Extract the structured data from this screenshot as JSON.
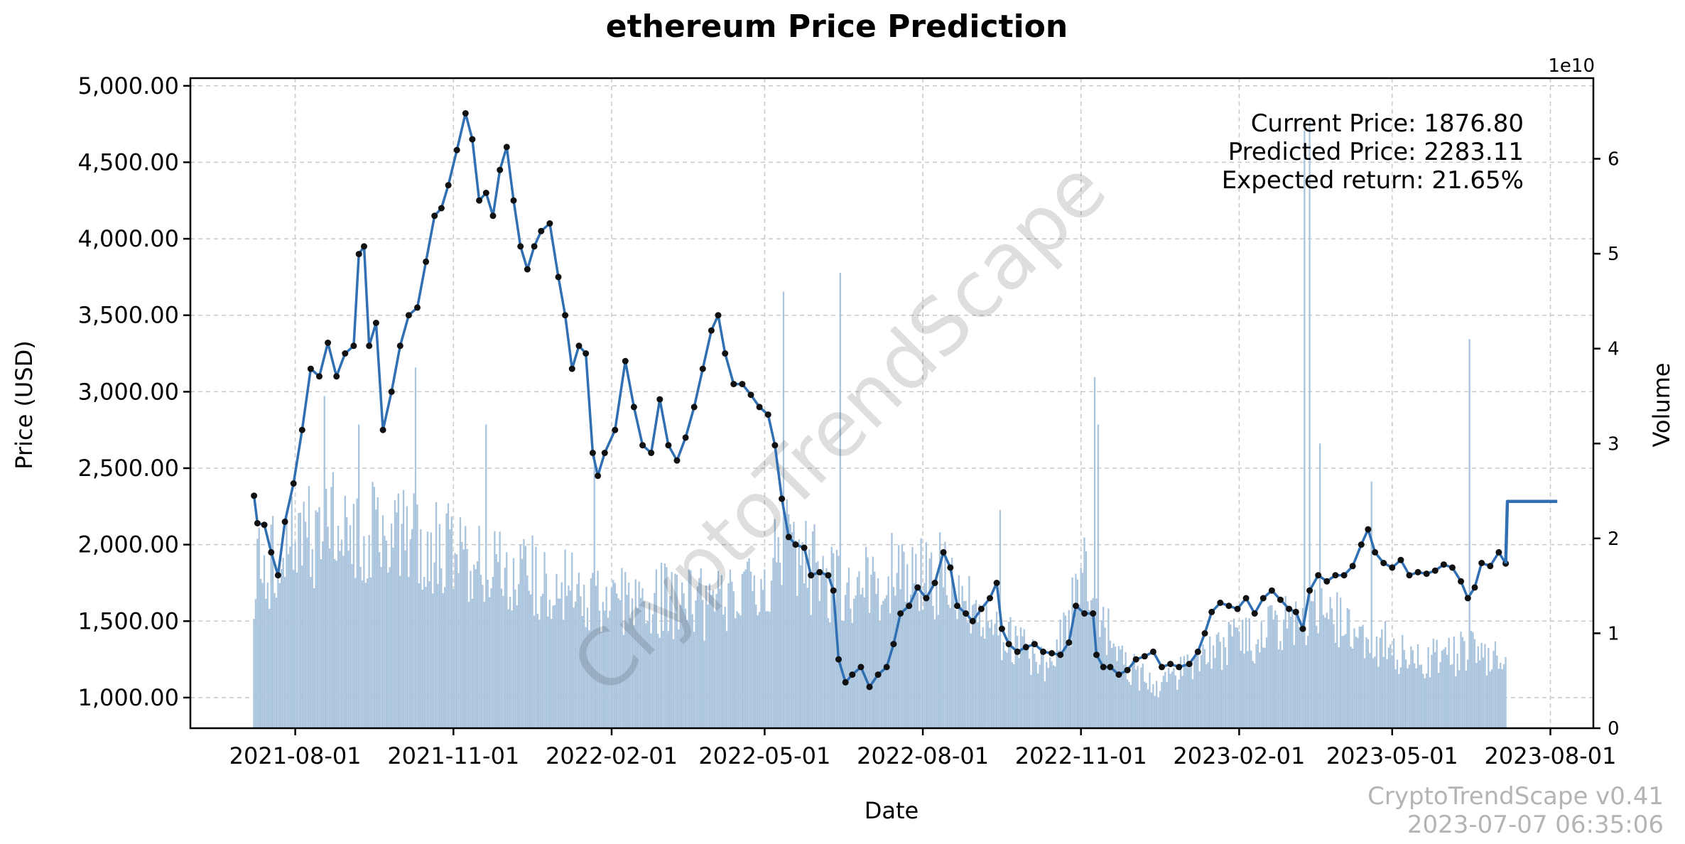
{
  "chart_data": {
    "type": "line",
    "title": "ethereum Price Prediction",
    "xlabel": "Date",
    "ylabel": "Price (USD)",
    "y2label": "Volume",
    "y2_offset_label": "1e10",
    "ylim": [
      800,
      5050
    ],
    "y2lim": [
      0,
      6.85
    ],
    "xlim": [
      "2021-06-01",
      "2023-08-26"
    ],
    "grid": true,
    "x_ticks": [
      "2021-08-01",
      "2021-11-01",
      "2022-02-01",
      "2022-05-01",
      "2022-08-01",
      "2022-11-01",
      "2023-02-01",
      "2023-05-01",
      "2023-08-01"
    ],
    "y_ticks": [
      "1,000.00",
      "1,500.00",
      "2,000.00",
      "2,500.00",
      "3,000.00",
      "3,500.00",
      "4,000.00",
      "4,500.00",
      "5,000.00"
    ],
    "y_tick_values": [
      1000,
      1500,
      2000,
      2500,
      3000,
      3500,
      4000,
      4500,
      5000
    ],
    "y2_ticks": [
      "0",
      "1",
      "2",
      "3",
      "4",
      "5",
      "6"
    ],
    "y2_tick_values": [
      0,
      1,
      2,
      3,
      4,
      5,
      6
    ],
    "series": [
      {
        "name": "Price",
        "color": "#2f6fb2",
        "marker_color": "#111111",
        "points": [
          [
            "2021-07-08",
            2320
          ],
          [
            "2021-07-10",
            2140
          ],
          [
            "2021-07-14",
            2130
          ],
          [
            "2021-07-18",
            1950
          ],
          [
            "2021-07-22",
            1800
          ],
          [
            "2021-07-26",
            2150
          ],
          [
            "2021-07-31",
            2400
          ],
          [
            "2021-08-05",
            2750
          ],
          [
            "2021-08-10",
            3150
          ],
          [
            "2021-08-15",
            3100
          ],
          [
            "2021-08-20",
            3320
          ],
          [
            "2021-08-25",
            3100
          ],
          [
            "2021-08-30",
            3250
          ],
          [
            "2021-09-04",
            3300
          ],
          [
            "2021-09-07",
            3900
          ],
          [
            "2021-09-10",
            3950
          ],
          [
            "2021-09-13",
            3300
          ],
          [
            "2021-09-17",
            3450
          ],
          [
            "2021-09-21",
            2750
          ],
          [
            "2021-09-26",
            3000
          ],
          [
            "2021-10-01",
            3300
          ],
          [
            "2021-10-06",
            3500
          ],
          [
            "2021-10-11",
            3550
          ],
          [
            "2021-10-16",
            3850
          ],
          [
            "2021-10-21",
            4150
          ],
          [
            "2021-10-25",
            4200
          ],
          [
            "2021-10-29",
            4350
          ],
          [
            "2021-11-03",
            4580
          ],
          [
            "2021-11-08",
            4820
          ],
          [
            "2021-11-12",
            4650
          ],
          [
            "2021-11-16",
            4250
          ],
          [
            "2021-11-20",
            4300
          ],
          [
            "2021-11-24",
            4150
          ],
          [
            "2021-11-28",
            4450
          ],
          [
            "2021-12-02",
            4600
          ],
          [
            "2021-12-06",
            4250
          ],
          [
            "2021-12-10",
            3950
          ],
          [
            "2021-12-14",
            3800
          ],
          [
            "2021-12-18",
            3950
          ],
          [
            "2021-12-22",
            4050
          ],
          [
            "2021-12-27",
            4100
          ],
          [
            "2022-01-01",
            3750
          ],
          [
            "2022-01-05",
            3500
          ],
          [
            "2022-01-09",
            3150
          ],
          [
            "2022-01-13",
            3300
          ],
          [
            "2022-01-17",
            3250
          ],
          [
            "2022-01-21",
            2600
          ],
          [
            "2022-01-24",
            2450
          ],
          [
            "2022-01-28",
            2600
          ],
          [
            "2022-02-03",
            2750
          ],
          [
            "2022-02-09",
            3200
          ],
          [
            "2022-02-14",
            2900
          ],
          [
            "2022-02-19",
            2650
          ],
          [
            "2022-02-24",
            2600
          ],
          [
            "2022-03-01",
            2950
          ],
          [
            "2022-03-06",
            2650
          ],
          [
            "2022-03-11",
            2550
          ],
          [
            "2022-03-16",
            2700
          ],
          [
            "2022-03-21",
            2900
          ],
          [
            "2022-03-26",
            3150
          ],
          [
            "2022-03-31",
            3400
          ],
          [
            "2022-04-04",
            3500
          ],
          [
            "2022-04-08",
            3250
          ],
          [
            "2022-04-13",
            3050
          ],
          [
            "2022-04-18",
            3050
          ],
          [
            "2022-04-23",
            2980
          ],
          [
            "2022-04-28",
            2900
          ],
          [
            "2022-05-03",
            2850
          ],
          [
            "2022-05-07",
            2650
          ],
          [
            "2022-05-11",
            2300
          ],
          [
            "2022-05-15",
            2050
          ],
          [
            "2022-05-19",
            2000
          ],
          [
            "2022-05-24",
            1980
          ],
          [
            "2022-05-28",
            1800
          ],
          [
            "2022-06-02",
            1820
          ],
          [
            "2022-06-07",
            1800
          ],
          [
            "2022-06-10",
            1700
          ],
          [
            "2022-06-13",
            1250
          ],
          [
            "2022-06-17",
            1100
          ],
          [
            "2022-06-21",
            1150
          ],
          [
            "2022-06-26",
            1200
          ],
          [
            "2022-07-01",
            1070
          ],
          [
            "2022-07-06",
            1150
          ],
          [
            "2022-07-11",
            1200
          ],
          [
            "2022-07-15",
            1350
          ],
          [
            "2022-07-19",
            1550
          ],
          [
            "2022-07-24",
            1600
          ],
          [
            "2022-07-29",
            1720
          ],
          [
            "2022-08-03",
            1650
          ],
          [
            "2022-08-08",
            1750
          ],
          [
            "2022-08-13",
            1950
          ],
          [
            "2022-08-17",
            1850
          ],
          [
            "2022-08-21",
            1600
          ],
          [
            "2022-08-26",
            1550
          ],
          [
            "2022-08-30",
            1500
          ],
          [
            "2022-09-04",
            1580
          ],
          [
            "2022-09-09",
            1650
          ],
          [
            "2022-09-13",
            1750
          ],
          [
            "2022-09-16",
            1450
          ],
          [
            "2022-09-20",
            1350
          ],
          [
            "2022-09-25",
            1300
          ],
          [
            "2022-09-30",
            1330
          ],
          [
            "2022-10-05",
            1350
          ],
          [
            "2022-10-10",
            1300
          ],
          [
            "2022-10-15",
            1290
          ],
          [
            "2022-10-20",
            1280
          ],
          [
            "2022-10-25",
            1360
          ],
          [
            "2022-10-29",
            1600
          ],
          [
            "2022-11-03",
            1550
          ],
          [
            "2022-11-08",
            1550
          ],
          [
            "2022-11-10",
            1280
          ],
          [
            "2022-11-14",
            1200
          ],
          [
            "2022-11-18",
            1200
          ],
          [
            "2022-11-23",
            1150
          ],
          [
            "2022-11-28",
            1180
          ],
          [
            "2022-12-03",
            1250
          ],
          [
            "2022-12-08",
            1270
          ],
          [
            "2022-12-13",
            1300
          ],
          [
            "2022-12-18",
            1200
          ],
          [
            "2022-12-23",
            1220
          ],
          [
            "2022-12-28",
            1200
          ],
          [
            "2023-01-03",
            1220
          ],
          [
            "2023-01-08",
            1300
          ],
          [
            "2023-01-12",
            1420
          ],
          [
            "2023-01-16",
            1560
          ],
          [
            "2023-01-21",
            1620
          ],
          [
            "2023-01-26",
            1600
          ],
          [
            "2023-01-31",
            1580
          ],
          [
            "2023-02-05",
            1650
          ],
          [
            "2023-02-10",
            1550
          ],
          [
            "2023-02-15",
            1650
          ],
          [
            "2023-02-20",
            1700
          ],
          [
            "2023-02-25",
            1640
          ],
          [
            "2023-03-02",
            1580
          ],
          [
            "2023-03-06",
            1560
          ],
          [
            "2023-03-10",
            1450
          ],
          [
            "2023-03-14",
            1700
          ],
          [
            "2023-03-19",
            1800
          ],
          [
            "2023-03-24",
            1760
          ],
          [
            "2023-03-29",
            1800
          ],
          [
            "2023-04-03",
            1800
          ],
          [
            "2023-04-08",
            1860
          ],
          [
            "2023-04-13",
            2000
          ],
          [
            "2023-04-17",
            2100
          ],
          [
            "2023-04-21",
            1950
          ],
          [
            "2023-04-26",
            1880
          ],
          [
            "2023-05-01",
            1850
          ],
          [
            "2023-05-06",
            1900
          ],
          [
            "2023-05-11",
            1800
          ],
          [
            "2023-05-16",
            1820
          ],
          [
            "2023-05-21",
            1810
          ],
          [
            "2023-05-26",
            1830
          ],
          [
            "2023-05-31",
            1870
          ],
          [
            "2023-06-05",
            1850
          ],
          [
            "2023-06-10",
            1760
          ],
          [
            "2023-06-14",
            1650
          ],
          [
            "2023-06-18",
            1720
          ],
          [
            "2023-06-22",
            1880
          ],
          [
            "2023-06-27",
            1860
          ],
          [
            "2023-07-02",
            1950
          ],
          [
            "2023-07-06",
            1876.8
          ]
        ]
      },
      {
        "name": "Prediction",
        "color": "#2f6fb2",
        "points": [
          [
            "2023-07-06",
            1876.8
          ],
          [
            "2023-07-07",
            2283.11
          ],
          [
            "2023-08-05",
            2283.11
          ]
        ]
      },
      {
        "name": "Volume",
        "color": "#a9c4dc",
        "axis": "right",
        "start": "2021-07-08",
        "end": "2023-07-06",
        "envelope": [
          [
            "2021-07-08",
            1.6
          ],
          [
            "2021-08-01",
            2.0
          ],
          [
            "2021-08-20",
            2.1
          ],
          [
            "2021-09-15",
            2.0
          ],
          [
            "2021-10-15",
            1.9
          ],
          [
            "2021-11-15",
            1.8
          ],
          [
            "2021-12-15",
            1.6
          ],
          [
            "2022-01-15",
            1.4
          ],
          [
            "2022-02-15",
            1.4
          ],
          [
            "2022-03-15",
            1.3
          ],
          [
            "2022-04-15",
            1.3
          ],
          [
            "2022-05-15",
            1.9
          ],
          [
            "2022-06-15",
            1.4
          ],
          [
            "2022-07-15",
            1.6
          ],
          [
            "2022-08-15",
            1.6
          ],
          [
            "2022-09-15",
            1.0
          ],
          [
            "2022-10-15",
            0.6
          ],
          [
            "2022-11-05",
            1.8
          ],
          [
            "2022-11-20",
            0.8
          ],
          [
            "2022-12-15",
            0.4
          ],
          [
            "2023-01-15",
            0.8
          ],
          [
            "2023-02-15",
            1.0
          ],
          [
            "2023-03-15",
            1.2
          ],
          [
            "2023-04-15",
            1.0
          ],
          [
            "2023-05-15",
            0.7
          ],
          [
            "2023-06-15",
            0.8
          ],
          [
            "2023-07-06",
            0.7
          ]
        ],
        "spikes": [
          [
            "2021-08-18",
            3.5
          ],
          [
            "2021-09-07",
            3.2
          ],
          [
            "2021-10-10",
            3.8
          ],
          [
            "2021-11-20",
            3.2
          ],
          [
            "2022-01-22",
            2.9
          ],
          [
            "2022-05-12",
            4.6
          ],
          [
            "2022-06-14",
            4.8
          ],
          [
            "2022-09-15",
            2.3
          ],
          [
            "2022-11-09",
            3.7
          ],
          [
            "2022-11-11",
            3.2
          ],
          [
            "2023-03-11",
            6.3
          ],
          [
            "2023-03-14",
            6.4
          ],
          [
            "2023-03-20",
            3.0
          ],
          [
            "2023-04-19",
            2.6
          ],
          [
            "2023-06-15",
            4.1
          ]
        ]
      }
    ],
    "annotations": {
      "current_price": "Current Price: 1876.80",
      "predicted_price": "Predicted Price: 2283.11",
      "expected_return": "Expected return: 21.65%"
    },
    "watermark": "CryptoTrendScape",
    "footer": {
      "version": "CryptoTrendScape v0.41",
      "timestamp": "2023-07-07 06:35:06"
    }
  }
}
